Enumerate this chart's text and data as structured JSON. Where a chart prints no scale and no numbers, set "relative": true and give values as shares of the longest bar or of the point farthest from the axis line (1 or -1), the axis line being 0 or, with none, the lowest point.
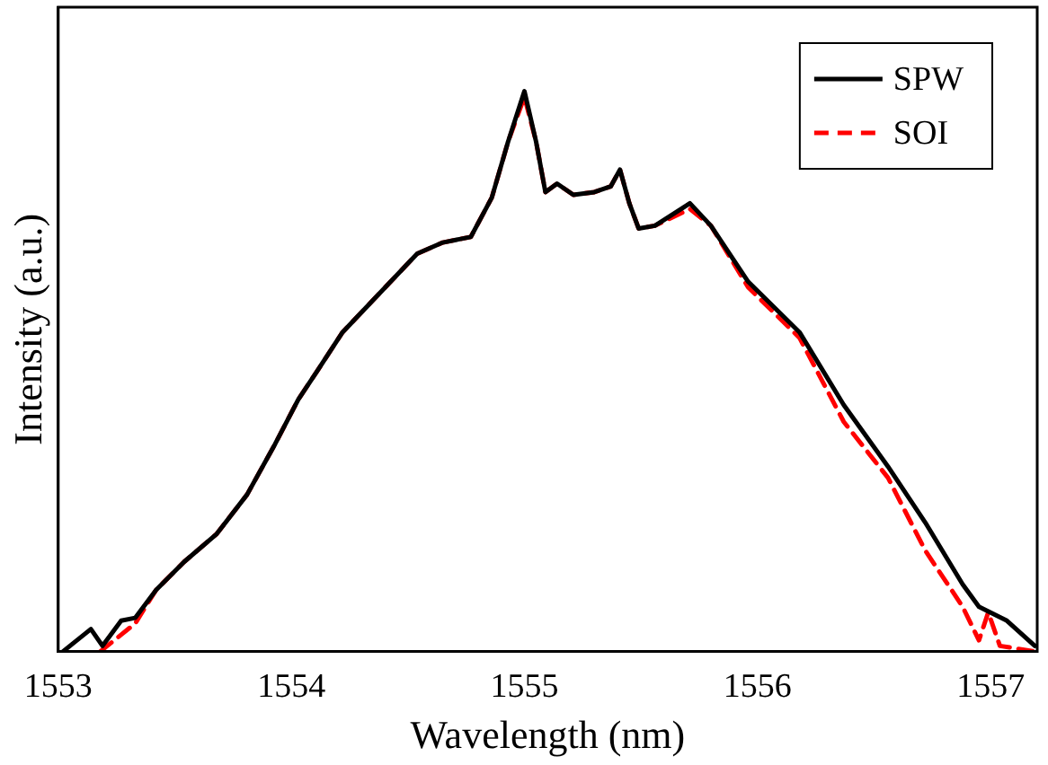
{
  "chart_data": {
    "type": "line",
    "relative": true,
    "xlabel": "Wavelength (nm)",
    "ylabel": "Intensity (a.u.)",
    "xlim": [
      1553,
      1557.2
    ],
    "xticks": [
      1553,
      1554,
      1555,
      1556,
      1557
    ],
    "legend": "top right",
    "grid": false,
    "line_style": "solid",
    "marker": "none",
    "series": [
      {
        "name": "SPW",
        "color": "#000000",
        "x": [
          1553.02,
          1553.14,
          1553.19,
          1553.27,
          1553.33,
          1553.42,
          1553.54,
          1553.68,
          1553.81,
          1553.93,
          1554.03,
          1554.11,
          1554.22,
          1554.38,
          1554.54,
          1554.65,
          1554.77,
          1554.86,
          1554.93,
          1555.0,
          1555.05,
          1555.09,
          1555.14,
          1555.21,
          1555.3,
          1555.37,
          1555.41,
          1555.45,
          1555.49,
          1555.56,
          1555.71,
          1555.8,
          1555.96,
          1556.18,
          1556.37,
          1556.56,
          1556.72,
          1556.88,
          1556.95,
          1557.07,
          1557.19
        ],
        "values": [
          0.0,
          0.04,
          0.01,
          0.055,
          0.06,
          0.11,
          0.16,
          0.21,
          0.28,
          0.37,
          0.45,
          0.5,
          0.57,
          0.64,
          0.71,
          0.73,
          0.74,
          0.81,
          0.91,
          1.0,
          0.91,
          0.82,
          0.835,
          0.815,
          0.82,
          0.83,
          0.86,
          0.8,
          0.755,
          0.76,
          0.8,
          0.76,
          0.66,
          0.57,
          0.44,
          0.33,
          0.23,
          0.12,
          0.08,
          0.055,
          0.01
        ]
      },
      {
        "name": "SOI",
        "color": "#ff0000",
        "line_style": "dashed",
        "x": [
          1553.18,
          1553.27,
          1553.33,
          1553.42,
          1553.54,
          1553.68,
          1553.81,
          1553.93,
          1554.03,
          1554.11,
          1554.22,
          1554.38,
          1554.54,
          1554.65,
          1554.77,
          1554.86,
          1554.93,
          1555.0,
          1555.05,
          1555.09,
          1555.14,
          1555.21,
          1555.3,
          1555.37,
          1555.41,
          1555.45,
          1555.49,
          1555.56,
          1555.71,
          1555.8,
          1555.96,
          1556.18,
          1556.37,
          1556.56,
          1556.72,
          1556.88,
          1556.95,
          1556.99,
          1557.04,
          1557.19
        ],
        "values": [
          0.0,
          0.03,
          0.05,
          0.11,
          0.16,
          0.21,
          0.28,
          0.37,
          0.45,
          0.5,
          0.57,
          0.64,
          0.71,
          0.73,
          0.74,
          0.81,
          0.91,
          0.99,
          0.91,
          0.82,
          0.835,
          0.815,
          0.82,
          0.83,
          0.86,
          0.8,
          0.755,
          0.76,
          0.79,
          0.76,
          0.65,
          0.56,
          0.41,
          0.31,
          0.18,
          0.08,
          0.02,
          0.07,
          0.01,
          0.0
        ]
      }
    ]
  }
}
